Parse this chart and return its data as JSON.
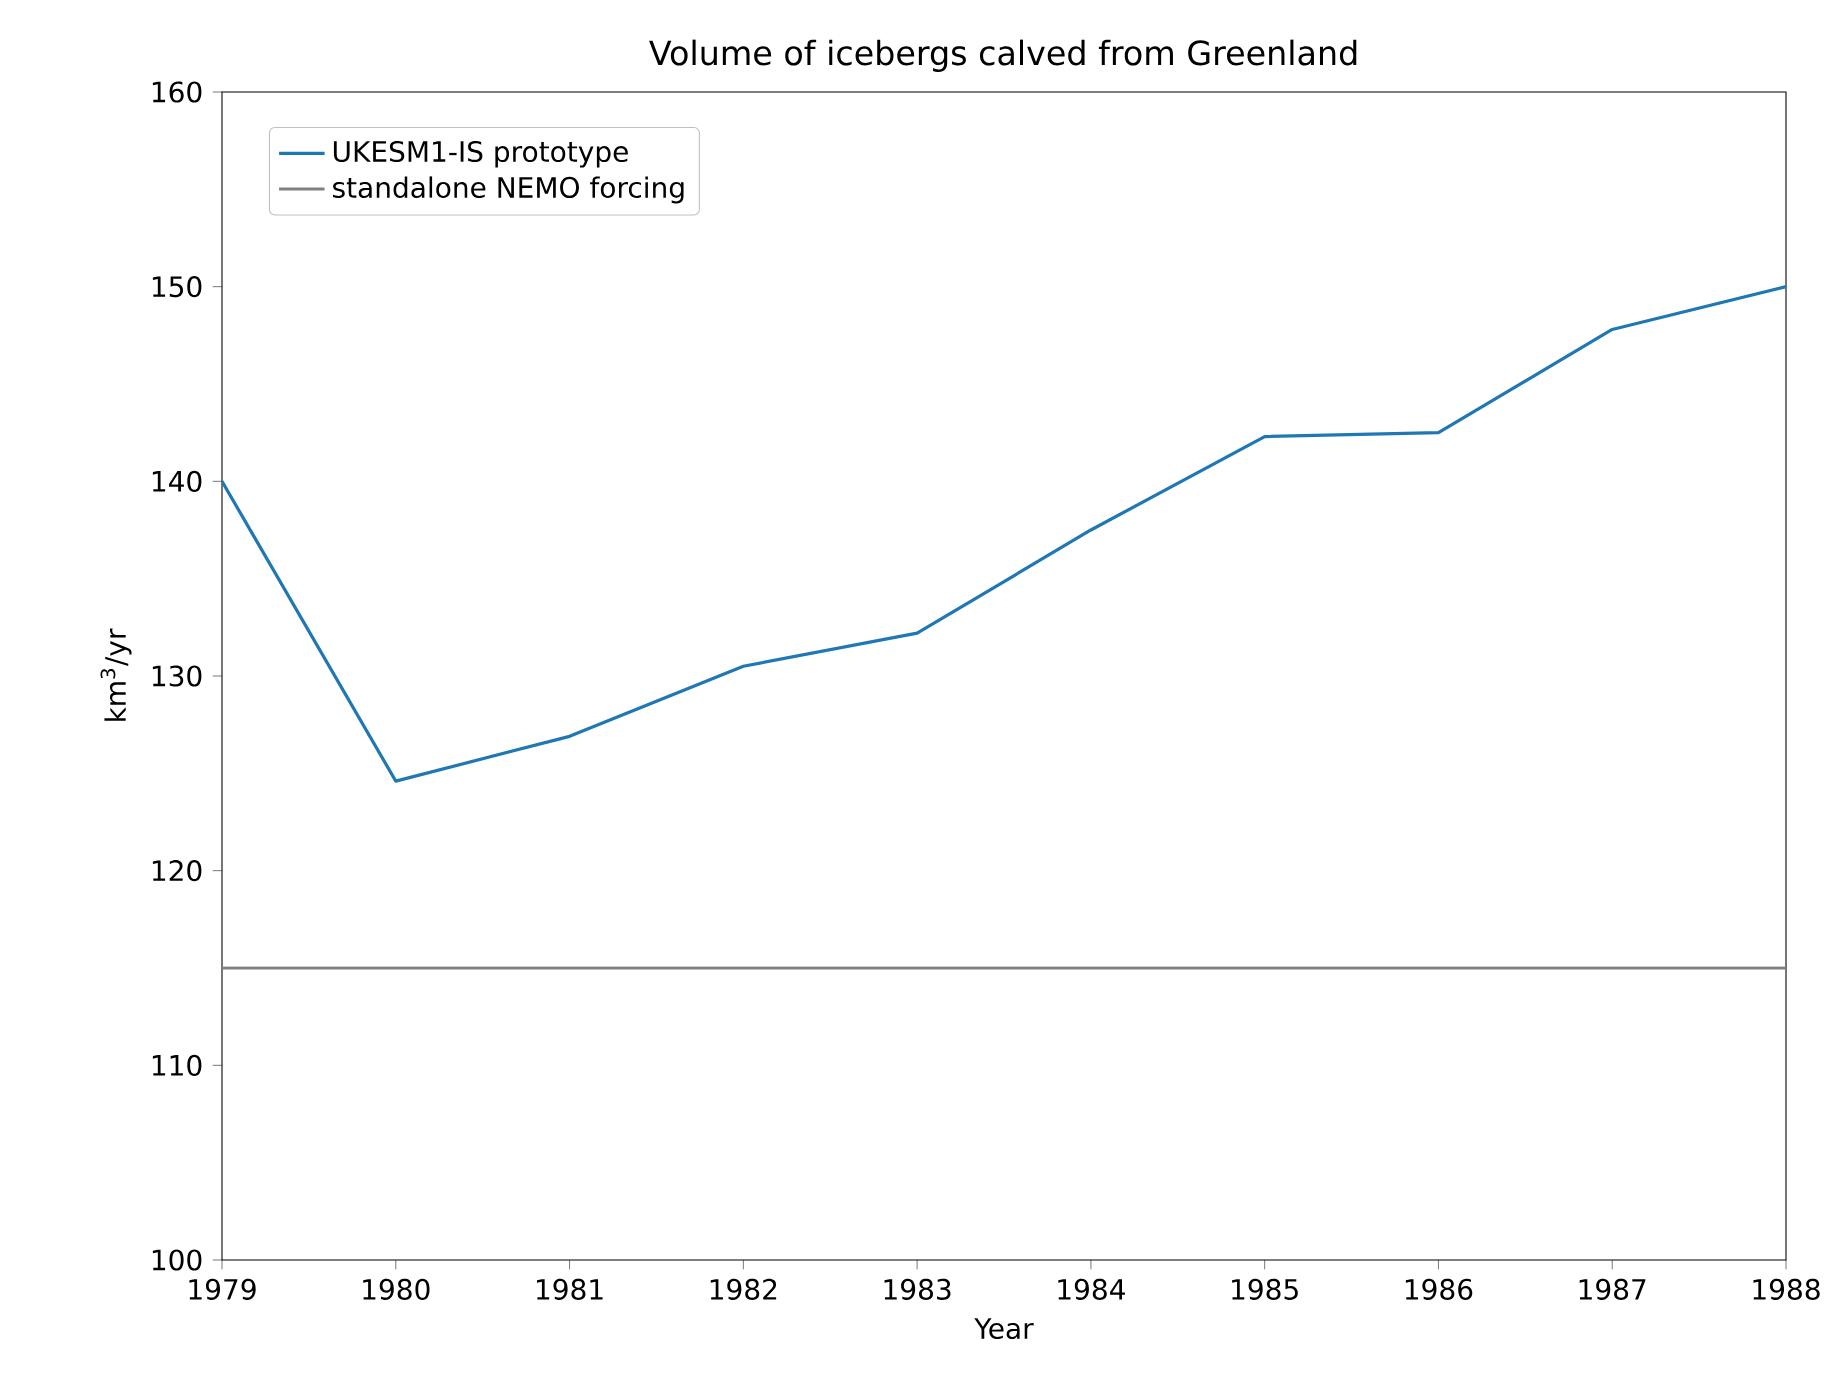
{
  "chart_data": {
    "type": "line",
    "title": "Volume of icebergs calved from Greenland",
    "xlabel": "Year",
    "ylabel": "km$^{3}$/yr",
    "x": [
      1979,
      1980,
      1981,
      1982,
      1983,
      1984,
      1985,
      1986,
      1987,
      1988
    ],
    "series": [
      {
        "name": "UKESM1-IS prototype",
        "color": "#1f77b4",
        "values": [
          140.0,
          124.6,
          126.9,
          130.5,
          132.2,
          137.5,
          142.3,
          142.5,
          147.8,
          150.0
        ]
      },
      {
        "name": "standalone NEMO forcing",
        "color": "#808080",
        "values": [
          115,
          115,
          115,
          115,
          115,
          115,
          115,
          115,
          115,
          115
        ]
      }
    ],
    "xlim": [
      1979,
      1988
    ],
    "ylim": [
      100,
      160
    ],
    "xticks": [
      1979,
      1980,
      1981,
      1982,
      1983,
      1984,
      1985,
      1986,
      1987,
      1988
    ],
    "yticks": [
      100,
      110,
      120,
      130,
      140,
      150,
      160
    ],
    "legend": "top left",
    "grid": false,
    "marker": "none",
    "line_style": "solid"
  }
}
